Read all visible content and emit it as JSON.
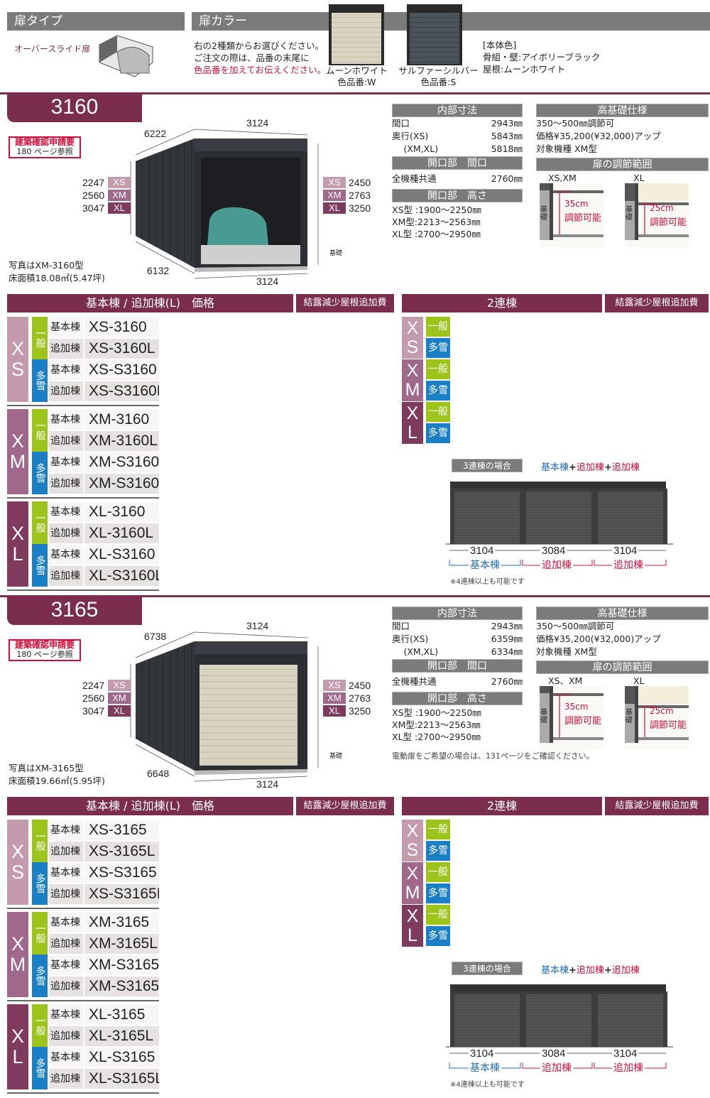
{
  "top": {
    "door_type_title": "扉タイプ",
    "door_type_name": "オーバースライド扉",
    "door_color_title": "扉カラー",
    "instructions": [
      "右の2種類からお選びください。",
      "ご注文の際は、品番の末尾に"
    ],
    "instruction_red": "色品番を加えてお伝えください。",
    "colors": [
      {
        "name": "ムーンホワイト",
        "code": "色品番:W",
        "hex": "#d9d3c2"
      },
      {
        "name": "サルファーシルバー",
        "code": "色品番:S",
        "hex": "#4b545a"
      }
    ],
    "body_color_title": "[本体色]",
    "body_color_lines": [
      "骨組・壁:アイボリーブラック",
      "屋根:ムーンホワイト"
    ]
  },
  "colors": {
    "maroon": "#7a2d4d",
    "gray_header": "#7b7b7b",
    "xs": "#c49aad",
    "xm": "#a0688a",
    "xl": "#7e3b5e",
    "general": "#9cc41a",
    "snow": "#1a7fc4",
    "red": "#d0103a",
    "blue": "#1f6fb5"
  },
  "sections": [
    {
      "model": "3160",
      "door": "open",
      "permit": {
        "title": "建築確認申請要",
        "sub": "180 ページ参照"
      },
      "dims": {
        "depth_top": "6222",
        "width_top": "3124",
        "depth_bottom": "6132",
        "width_bottom": "3124",
        "foundation": "基礎",
        "left": [
          {
            "v": "2247",
            "s": "XS"
          },
          {
            "v": "2560",
            "s": "XM"
          },
          {
            "v": "3047",
            "s": "XL"
          }
        ],
        "right": [
          {
            "v": "2450",
            "s": "XS"
          },
          {
            "v": "2763",
            "s": "XM"
          },
          {
            "v": "3250",
            "s": "XL"
          }
        ]
      },
      "photo_note": "写真はXM-3160型",
      "floor_area": "床面積18.08㎡(5.47坪)",
      "inner": {
        "title": "内部寸法",
        "rows": [
          [
            "間口",
            "2943㎜"
          ],
          [
            "奥行(XS)",
            "5843㎜"
          ],
          [
            "　 (XM,XL)",
            "5818㎜"
          ]
        ]
      },
      "opening_width": {
        "title": "開口部　間口",
        "rows": [
          [
            "全機種共通",
            "2760㎜"
          ]
        ]
      },
      "opening_height": {
        "title": "開口部　高さ",
        "rows": [
          "XS型 :1900〜2250㎜",
          "XM型:2213〜2563㎜",
          "XL型 :2700〜2950㎜"
        ]
      },
      "high_base": {
        "title": "高基礎仕様",
        "rows": [
          "350〜500㎜調節可",
          "価格¥35,200(¥32,000)アップ",
          "対象機種 XM型"
        ]
      },
      "adjust": {
        "title": "扉の調節範囲",
        "items": [
          {
            "label": "XS,XM",
            "base": "基礎",
            "range": "35cm",
            "text": "調節可能"
          },
          {
            "label": "XL",
            "base": "基礎",
            "range": "25cm",
            "text": "調節可能"
          }
        ]
      },
      "note": "",
      "price": {
        "header": "基本棟 / 追加棟(L)　価格",
        "extra_header": "結露減少屋根追加費",
        "groups": [
          {
            "size": "XS",
            "types": [
              {
                "type": "一般",
                "rows": [
                  [
                    "基本棟",
                    "XS-3160"
                  ],
                  [
                    "追加棟",
                    "XS-3160L"
                  ]
                ]
              },
              {
                "type": "多雪",
                "rows": [
                  [
                    "基本棟",
                    "XS-S3160"
                  ],
                  [
                    "追加棟",
                    "XS-S3160L"
                  ]
                ]
              }
            ]
          },
          {
            "size": "XM",
            "types": [
              {
                "type": "一般",
                "rows": [
                  [
                    "基本棟",
                    "XM-3160"
                  ],
                  [
                    "追加棟",
                    "XM-3160L"
                  ]
                ]
              },
              {
                "type": "多雪",
                "rows": [
                  [
                    "基本棟",
                    "XM-S3160"
                  ],
                  [
                    "追加棟",
                    "XM-S3160L"
                  ]
                ]
              }
            ]
          },
          {
            "size": "XL",
            "types": [
              {
                "type": "一般",
                "rows": [
                  [
                    "基本棟",
                    "XL-3160"
                  ],
                  [
                    "追加棟",
                    "XL-3160L"
                  ]
                ]
              },
              {
                "type": "多雪",
                "rows": [
                  [
                    "基本棟",
                    "XL-S3160"
                  ],
                  [
                    "追加棟",
                    "XL-S3160L"
                  ]
                ]
              }
            ]
          }
        ]
      },
      "twin": {
        "header": "2連棟",
        "extra_header": "結露減少屋根追加費",
        "groups": [
          {
            "size": "XS",
            "types": [
              "一般",
              "多雪"
            ]
          },
          {
            "size": "XM",
            "types": [
              "一般",
              "多雪"
            ]
          },
          {
            "size": "XL",
            "types": [
              "一般",
              "多雪"
            ]
          }
        ]
      },
      "triple": {
        "label": "3連棟の場合",
        "formula": [
          "基本棟",
          "+",
          "追加棟",
          "+",
          "追加棟"
        ],
        "widths": [
          "3104",
          "3084",
          "3104"
        ],
        "parts": [
          "基本棟",
          "追加棟",
          "追加棟"
        ],
        "note": "※4連棟以上も可能です"
      }
    },
    {
      "model": "3165",
      "door": "closed",
      "permit": {
        "title": "建築確認申請要",
        "sub": "180 ページ参照"
      },
      "dims": {
        "depth_top": "6738",
        "width_top": "3124",
        "depth_bottom": "6648",
        "width_bottom": "3124",
        "foundation": "基礎",
        "left": [
          {
            "v": "2247",
            "s": "XS"
          },
          {
            "v": "2560",
            "s": "XM"
          },
          {
            "v": "3047",
            "s": "XL"
          }
        ],
        "right": [
          {
            "v": "2450",
            "s": "XS"
          },
          {
            "v": "2763",
            "s": "XM"
          },
          {
            "v": "3250",
            "s": "XL"
          }
        ]
      },
      "photo_note": "写真はXM-3165型",
      "floor_area": "床面積19.66㎡(5.95坪)",
      "inner": {
        "title": "内部寸法",
        "rows": [
          [
            "間口",
            "2943㎜"
          ],
          [
            "奥行(XS)",
            "6359㎜"
          ],
          [
            "　 (XM,XL)",
            "6334㎜"
          ]
        ]
      },
      "opening_width": {
        "title": "開口部　間口",
        "rows": [
          [
            "全機種共通",
            "2760㎜"
          ]
        ]
      },
      "opening_height": {
        "title": "開口部　高さ",
        "rows": [
          "XS型 :1900〜2250㎜",
          "XM型:2213〜2563㎜",
          "XL型 :2700〜2950㎜"
        ]
      },
      "high_base": {
        "title": "高基礎仕様",
        "rows": [
          "350〜500㎜調節可",
          "価格¥35,200(¥32,000)アップ",
          "対象機種 XM型"
        ]
      },
      "adjust": {
        "title": "扉の調節範囲",
        "items": [
          {
            "label": "XS、XM",
            "base": "基礎",
            "range": "35cm",
            "text": "調節可能"
          },
          {
            "label": "XL",
            "base": "基礎",
            "range": "25cm",
            "text": "調節可能"
          }
        ]
      },
      "note": "電動扉をご希望の場合は、131ページをご確認ください。",
      "price": {
        "header": "基本棟 / 追加棟(L)　価格",
        "extra_header": "結露減少屋根追加費",
        "groups": [
          {
            "size": "XS",
            "types": [
              {
                "type": "一般",
                "rows": [
                  [
                    "基本棟",
                    "XS-3165"
                  ],
                  [
                    "追加棟",
                    "XS-3165L"
                  ]
                ]
              },
              {
                "type": "多雪",
                "rows": [
                  [
                    "基本棟",
                    "XS-S3165"
                  ],
                  [
                    "追加棟",
                    "XS-S3165L"
                  ]
                ]
              }
            ]
          },
          {
            "size": "XM",
            "types": [
              {
                "type": "一般",
                "rows": [
                  [
                    "基本棟",
                    "XM-3165"
                  ],
                  [
                    "追加棟",
                    "XM-3165L"
                  ]
                ]
              },
              {
                "type": "多雪",
                "rows": [
                  [
                    "基本棟",
                    "XM-S3165"
                  ],
                  [
                    "追加棟",
                    "XM-S3165L"
                  ]
                ]
              }
            ]
          },
          {
            "size": "XL",
            "types": [
              {
                "type": "一般",
                "rows": [
                  [
                    "基本棟",
                    "XL-3165"
                  ],
                  [
                    "追加棟",
                    "XL-3165L"
                  ]
                ]
              },
              {
                "type": "多雪",
                "rows": [
                  [
                    "基本棟",
                    "XL-S3165"
                  ],
                  [
                    "追加棟",
                    "XL-S3165L"
                  ]
                ]
              }
            ]
          }
        ]
      },
      "twin": {
        "header": "2連棟",
        "extra_header": "結露減少屋根追加費",
        "groups": [
          {
            "size": "XS",
            "types": [
              "一般",
              "多雪"
            ]
          },
          {
            "size": "XM",
            "types": [
              "一般",
              "多雪"
            ]
          },
          {
            "size": "XL",
            "types": [
              "一般",
              "多雪"
            ]
          }
        ]
      },
      "triple": {
        "label": "3連棟の場合",
        "formula": [
          "基本棟",
          "+",
          "追加棟",
          "+",
          "追加棟"
        ],
        "widths": [
          "3104",
          "3084",
          "3104"
        ],
        "parts": [
          "基本棟",
          "追加棟",
          "追加棟"
        ],
        "note": "※4連棟以上も可能です"
      }
    }
  ]
}
